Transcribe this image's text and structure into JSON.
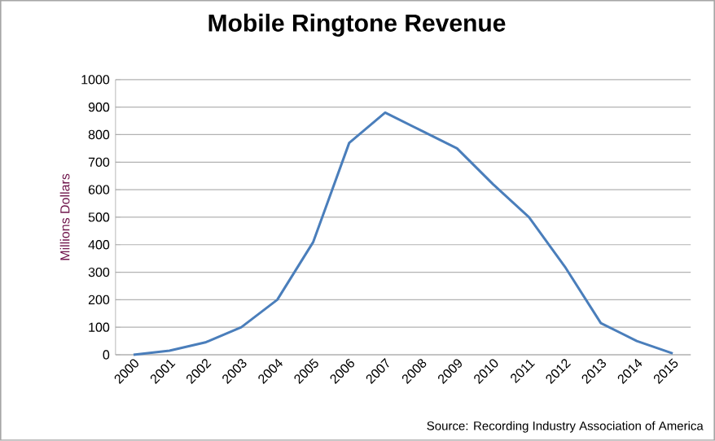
{
  "chart_data": {
    "type": "line",
    "title": "Mobile Ringtone Revenue",
    "ylabel": "Millions Dollars",
    "categories": [
      "2000",
      "2001",
      "2002",
      "2003",
      "2004",
      "2005",
      "2006",
      "2007",
      "2008",
      "2009",
      "2010",
      "2011",
      "2012",
      "2013",
      "2014",
      "2015"
    ],
    "values": [
      0,
      15,
      45,
      100,
      200,
      410,
      770,
      880,
      815,
      750,
      620,
      500,
      320,
      115,
      50,
      5
    ],
    "color": "#4a7ebb",
    "ylim": [
      0,
      1000
    ],
    "yticks": [
      0,
      100,
      200,
      300,
      400,
      500,
      600,
      700,
      800,
      900,
      1000
    ],
    "grid": "y",
    "annotations": [
      "Source: Recording Industry Association of America"
    ]
  }
}
